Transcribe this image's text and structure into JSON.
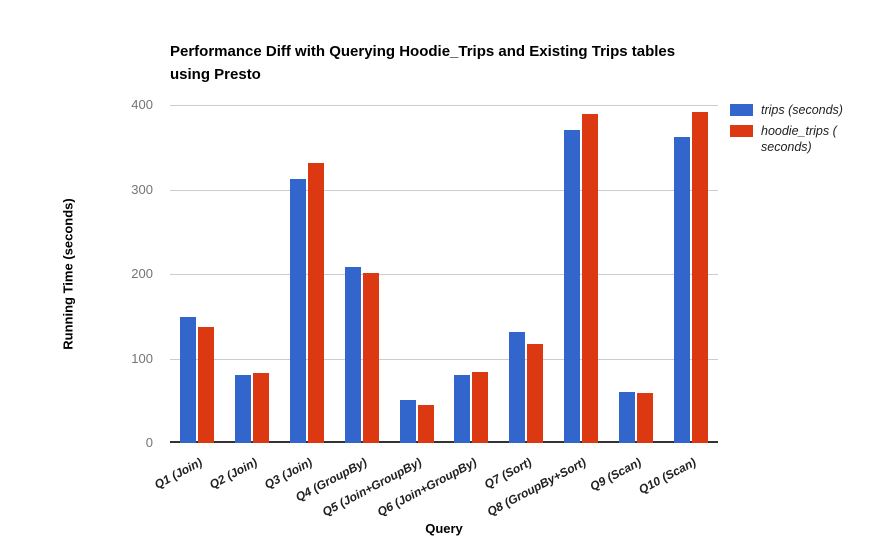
{
  "title": {
    "line1": "Performance Diff with Querying Hoodie_Trips and Existing Trips tables",
    "line2": "using Presto"
  },
  "chart_data": {
    "type": "bar",
    "title": "Performance Diff with Querying Hoodie_Trips and Existing Trips tables using Presto",
    "xlabel": "Query",
    "ylabel": "Running Time (seconds)",
    "ylim": [
      0,
      400
    ],
    "yticks": [
      0,
      100,
      200,
      300,
      400
    ],
    "grid": true,
    "legend_position": "top-right",
    "categories": [
      "Q1 (Join)",
      "Q2 (Join)",
      "Q3 (Join)",
      "Q4 (GroupBy)",
      "Q5 (Join+GroupBy)",
      "Q6 (Join+GroupBy)",
      "Q7 (Sort)",
      "Q8 (GroupBy+Sort)",
      "Q9 (Scan)",
      "Q10 (Scan)"
    ],
    "series": [
      {
        "name": "trips (seconds)",
        "color": "#3366CC",
        "values": [
          149,
          81,
          313,
          208,
          51,
          80,
          131,
          370,
          60,
          362
        ]
      },
      {
        "name": "hoodie_trips ( seconds)",
        "color": "#DC3912",
        "values": [
          137,
          83,
          331,
          201,
          45,
          84,
          117,
          389,
          59,
          392
        ]
      }
    ],
    "colors": {
      "axis_line": "#333333",
      "gridline": "#cccccc",
      "tick_text": "#757575"
    }
  }
}
